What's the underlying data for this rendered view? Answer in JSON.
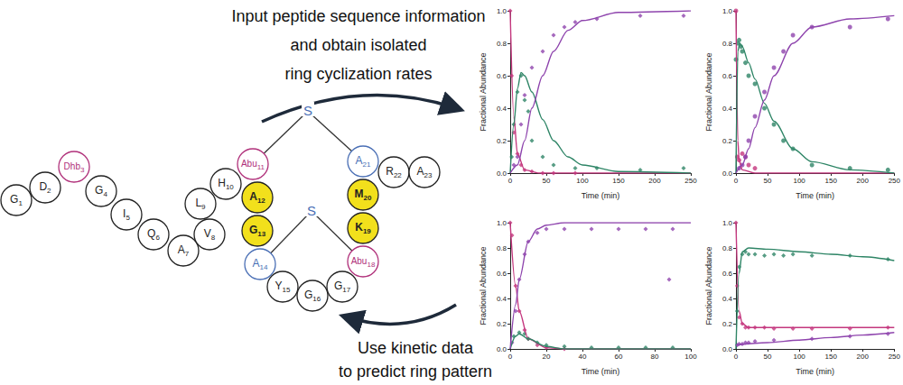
{
  "chart_data": [
    {
      "type": "scatter",
      "xlabel": "Time (min)",
      "ylabel": "Fractional Abundance",
      "xlim": [
        0,
        250
      ],
      "xticks": [
        0,
        50,
        100,
        150,
        200,
        250
      ],
      "ylim": [
        0,
        1
      ],
      "yticks": [
        {
          "value": 0,
          "label": "0.0"
        },
        0.2,
        0.4,
        0.6,
        0.8,
        {
          "value": 1,
          "label": "1.0"
        }
      ],
      "grid": false,
      "series": [
        {
          "type": "scatter",
          "marker": "diamond",
          "color": "#c4377e",
          "x": [
            0,
            2,
            5,
            10,
            15,
            20,
            30,
            45,
            60,
            90
          ],
          "values": [
            1.0,
            0.6,
            0.25,
            0.12,
            0.05,
            0.02,
            0.01,
            0.0,
            0.0,
            0.0
          ]
        },
        {
          "type": "scatter",
          "marker": "diamond",
          "color": "#2e8566",
          "x": [
            2,
            5,
            10,
            15,
            20,
            25,
            30,
            45,
            60,
            90,
            120,
            180,
            240
          ],
          "values": [
            0.1,
            0.3,
            0.5,
            0.6,
            0.45,
            0.38,
            0.2,
            0.1,
            0.05,
            0.03,
            0.03,
            0.02,
            0.03
          ]
        },
        {
          "type": "scatter",
          "marker": "diamond",
          "color": "#8e44ad",
          "x": [
            5,
            10,
            15,
            20,
            30,
            45,
            60,
            75,
            90,
            120,
            180,
            240
          ],
          "values": [
            0.05,
            0.1,
            0.3,
            0.48,
            0.65,
            0.75,
            0.85,
            0.9,
            0.93,
            0.95,
            0.97,
            0.97
          ]
        },
        {
          "type": "line",
          "line_style": "solid",
          "color": "#c4377e",
          "x": [
            0,
            5,
            10,
            20,
            40,
            250
          ],
          "values": [
            1.0,
            0.35,
            0.12,
            0.02,
            0.0,
            0.0
          ]
        },
        {
          "type": "line",
          "line_style": "solid",
          "color": "#2e8566",
          "x": [
            0,
            5,
            10,
            15,
            20,
            30,
            45,
            60,
            80,
            100,
            150,
            250
          ],
          "values": [
            0.0,
            0.3,
            0.52,
            0.62,
            0.6,
            0.5,
            0.33,
            0.2,
            0.1,
            0.05,
            0.01,
            0.0
          ]
        },
        {
          "type": "line",
          "line_style": "solid",
          "color": "#8e44ad",
          "x": [
            0,
            10,
            20,
            30,
            45,
            60,
            80,
            100,
            150,
            250
          ],
          "values": [
            0.0,
            0.05,
            0.2,
            0.4,
            0.6,
            0.75,
            0.88,
            0.94,
            0.99,
            1.0
          ]
        }
      ]
    },
    {
      "type": "scatter",
      "xlabel": "Time (min)",
      "ylabel": "Fractional Abundance",
      "xlim": [
        0,
        250
      ],
      "xticks": [
        0,
        50,
        100,
        150,
        200,
        250
      ],
      "ylim": [
        0,
        1
      ],
      "yticks": [
        {
          "value": 0,
          "label": "0.0"
        },
        0.2,
        0.4,
        0.6,
        0.8,
        {
          "value": 1,
          "label": "1.0"
        }
      ],
      "grid": false,
      "series": [
        {
          "type": "scatter",
          "marker": "circle",
          "color": "#c4377e",
          "x": [
            0,
            2,
            5,
            10,
            15,
            20,
            30
          ],
          "values": [
            1.0,
            0.1,
            0.08,
            0.12,
            0.1,
            0.05,
            0.03
          ]
        },
        {
          "type": "scatter",
          "marker": "circle",
          "color": "#2e8566",
          "x": [
            0,
            3,
            5,
            8,
            10,
            15,
            20,
            30,
            45,
            60,
            75,
            90,
            120,
            180,
            240
          ],
          "values": [
            0.7,
            0.8,
            0.82,
            0.78,
            0.75,
            0.68,
            0.6,
            0.55,
            0.4,
            0.3,
            0.2,
            0.15,
            0.05,
            0.03,
            0.02
          ]
        },
        {
          "type": "scatter",
          "marker": "circle",
          "color": "#8e44ad",
          "x": [
            5,
            10,
            15,
            20,
            30,
            45,
            60,
            75,
            90,
            120,
            180,
            240
          ],
          "values": [
            0.03,
            0.05,
            0.1,
            0.2,
            0.35,
            0.5,
            0.65,
            0.75,
            0.85,
            0.9,
            0.9,
            0.95
          ]
        },
        {
          "type": "line",
          "line_style": "solid",
          "color": "#c4377e",
          "x": [
            0,
            3,
            5,
            10,
            30,
            250
          ],
          "values": [
            1.0,
            0.2,
            0.08,
            0.02,
            0.0,
            0.0
          ]
        },
        {
          "type": "line",
          "line_style": "solid",
          "color": "#2e8566",
          "x": [
            0,
            3,
            6,
            10,
            20,
            30,
            45,
            60,
            90,
            120,
            180,
            250
          ],
          "values": [
            0.0,
            0.75,
            0.8,
            0.78,
            0.68,
            0.58,
            0.43,
            0.32,
            0.15,
            0.07,
            0.02,
            0.0
          ]
        },
        {
          "type": "line",
          "line_style": "solid",
          "color": "#8e44ad",
          "x": [
            0,
            10,
            20,
            30,
            45,
            60,
            90,
            120,
            180,
            250
          ],
          "values": [
            0.0,
            0.05,
            0.15,
            0.28,
            0.45,
            0.6,
            0.8,
            0.9,
            0.95,
            0.97
          ]
        }
      ]
    },
    {
      "type": "scatter",
      "xlabel": "Time (min)",
      "ylabel": "Fractional Abundance",
      "xlim": [
        0,
        100
      ],
      "xticks": [
        0,
        20,
        40,
        60,
        80,
        100
      ],
      "ylim": [
        0,
        1
      ],
      "yticks": [
        {
          "value": 0,
          "label": "0.0"
        },
        0.2,
        0.4,
        0.6,
        0.8,
        {
          "value": 1,
          "label": "1.0"
        }
      ],
      "grid": false,
      "series": [
        {
          "type": "scatter",
          "marker": "diamond",
          "color": "#c4377e",
          "x": [
            0,
            1,
            3,
            5,
            8,
            10,
            15,
            20,
            30
          ],
          "values": [
            1.0,
            0.9,
            0.5,
            0.3,
            0.15,
            0.08,
            0.03,
            0.01,
            0.0
          ]
        },
        {
          "type": "scatter",
          "marker": "diamond",
          "color": "#2e8566",
          "x": [
            2,
            5,
            8,
            10,
            15,
            20,
            30,
            45,
            60,
            75,
            90
          ],
          "values": [
            0.1,
            0.13,
            0.12,
            0.08,
            0.05,
            0.03,
            0.02,
            0.01,
            0.01,
            0.01,
            0.01
          ]
        },
        {
          "type": "scatter",
          "marker": "diamond",
          "color": "#8e44ad",
          "x": [
            1,
            3,
            5,
            8,
            10,
            15,
            20,
            30,
            45,
            60,
            75,
            88,
            90
          ],
          "values": [
            0.05,
            0.3,
            0.55,
            0.75,
            0.85,
            0.92,
            0.95,
            0.95,
            0.95,
            0.95,
            0.95,
            0.55,
            0.95
          ]
        },
        {
          "type": "line",
          "line_style": "solid",
          "color": "#c4377e",
          "x": [
            0,
            3,
            5,
            10,
            20,
            30,
            100
          ],
          "values": [
            1.0,
            0.5,
            0.3,
            0.08,
            0.01,
            0.0,
            0.0
          ]
        },
        {
          "type": "line",
          "line_style": "solid",
          "color": "#2e8566",
          "x": [
            0,
            3,
            5,
            10,
            20,
            30,
            100
          ],
          "values": [
            0.0,
            0.1,
            0.12,
            0.08,
            0.02,
            0.0,
            0.0
          ]
        },
        {
          "type": "line",
          "line_style": "solid",
          "color": "#8e44ad",
          "x": [
            0,
            3,
            5,
            10,
            15,
            20,
            30,
            100
          ],
          "values": [
            0.0,
            0.35,
            0.55,
            0.85,
            0.95,
            0.98,
            1.0,
            1.0
          ]
        }
      ]
    },
    {
      "type": "scatter",
      "xlabel": "Time (min)",
      "ylabel": "Fractional Abundance",
      "xlim": [
        0,
        250
      ],
      "xticks": [
        0,
        50,
        100,
        150,
        200,
        250
      ],
      "ylim": [
        0,
        1
      ],
      "yticks": [
        {
          "value": 0,
          "label": "0.0"
        },
        0.2,
        0.4,
        0.6,
        0.8,
        {
          "value": 1,
          "label": "1.0"
        }
      ],
      "grid": false,
      "series": [
        {
          "type": "scatter",
          "marker": "diamond",
          "color": "#c4377e",
          "x": [
            0,
            2,
            5,
            10,
            15,
            20,
            30,
            45,
            60,
            90,
            120,
            180,
            240
          ],
          "values": [
            1.0,
            0.5,
            0.25,
            0.2,
            0.17,
            0.17,
            0.17,
            0.17,
            0.16,
            0.16,
            0.16,
            0.16,
            0.17
          ]
        },
        {
          "type": "scatter",
          "marker": "diamond",
          "color": "#2e8566",
          "x": [
            2,
            5,
            10,
            15,
            20,
            30,
            45,
            60,
            75,
            90,
            120,
            180,
            240
          ],
          "values": [
            0.3,
            0.65,
            0.75,
            0.77,
            0.75,
            0.75,
            0.74,
            0.75,
            0.74,
            0.75,
            0.74,
            0.74,
            0.71
          ]
        },
        {
          "type": "scatter",
          "marker": "diamond",
          "color": "#8e44ad",
          "x": [
            2,
            5,
            10,
            15,
            20,
            30,
            60,
            120,
            180,
            240
          ],
          "values": [
            0.03,
            0.04,
            0.04,
            0.05,
            0.05,
            0.06,
            0.07,
            0.08,
            0.1,
            0.12
          ]
        },
        {
          "type": "line",
          "line_style": "solid",
          "color": "#c4377e",
          "x": [
            0,
            5,
            10,
            20,
            250
          ],
          "values": [
            1.0,
            0.3,
            0.2,
            0.17,
            0.17
          ]
        },
        {
          "type": "line",
          "line_style": "solid",
          "color": "#2e8566",
          "x": [
            0,
            5,
            10,
            20,
            50,
            100,
            150,
            200,
            250
          ],
          "values": [
            0.0,
            0.6,
            0.77,
            0.8,
            0.79,
            0.77,
            0.75,
            0.73,
            0.7
          ]
        },
        {
          "type": "line",
          "line_style": "solid",
          "color": "#8e44ad",
          "x": [
            0,
            50,
            100,
            150,
            200,
            250
          ],
          "values": [
            0.03,
            0.05,
            0.07,
            0.09,
            0.11,
            0.13
          ]
        }
      ]
    }
  ],
  "diagram": {
    "top_text": [
      "Input peptide sequence information",
      "and obtain isolated",
      "ring cyclization rates"
    ],
    "bottom_text": [
      "Use kinetic data",
      "to predict ring pattern"
    ],
    "residues": [
      {
        "label": "G",
        "number": 1,
        "color": "#222222"
      },
      {
        "label": "D",
        "number": 2,
        "color": "#222222"
      },
      {
        "label": "Dhb",
        "number": 3,
        "color": "#b0307a"
      },
      {
        "label": "G",
        "number": 4,
        "color": "#222222"
      },
      {
        "label": "I",
        "number": 5,
        "color": "#222222"
      },
      {
        "label": "Q",
        "number": 6,
        "color": "#222222"
      },
      {
        "label": "A",
        "number": 7,
        "color": "#222222"
      },
      {
        "label": "V",
        "number": 8,
        "color": "#222222"
      },
      {
        "label": "L",
        "number": 9,
        "color": "#222222"
      },
      {
        "label": "H",
        "number": 10,
        "color": "#222222"
      },
      {
        "label": "Abu",
        "number": 11,
        "color": "#b0307a"
      },
      {
        "label": "A",
        "number": 12,
        "color": "#222222",
        "highlight": true
      },
      {
        "label": "G",
        "number": 13,
        "color": "#222222",
        "highlight": true
      },
      {
        "label": "A",
        "number": 14,
        "color": "#4a6fb5"
      },
      {
        "label": "Y",
        "number": 15,
        "color": "#222222"
      },
      {
        "label": "G",
        "number": 16,
        "color": "#222222"
      },
      {
        "label": "G",
        "number": 17,
        "color": "#222222"
      },
      {
        "label": "Abu",
        "number": 18,
        "color": "#b0307a"
      },
      {
        "label": "K",
        "number": 19,
        "color": "#222222",
        "highlight": true
      },
      {
        "label": "M",
        "number": 20,
        "color": "#222222",
        "highlight": true
      },
      {
        "label": "A",
        "number": 21,
        "color": "#4a6fb5"
      },
      {
        "label": "R",
        "number": 22,
        "color": "#222222"
      },
      {
        "label": "A",
        "number": 23,
        "color": "#222222"
      }
    ],
    "bridges": [
      {
        "label": "S",
        "from": 11,
        "to": 21,
        "color": "#4a6fb5"
      },
      {
        "label": "S",
        "from": 14,
        "to": 18,
        "color": "#4a6fb5"
      }
    ]
  }
}
